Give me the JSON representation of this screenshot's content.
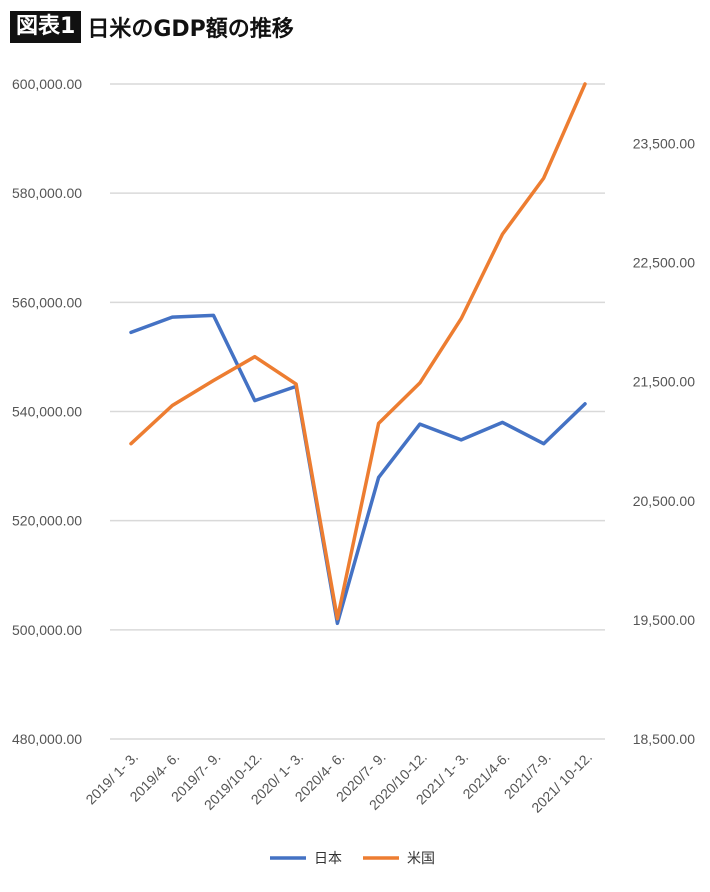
{
  "header": {
    "badge": "図表1",
    "title": "日米のGDP額の推移"
  },
  "chart_data": {
    "type": "line",
    "title": "日米のGDP額の推移",
    "categories": [
      "2019/ 1- 3.",
      "2019/4- 6.",
      "2019/7- 9.",
      "2019/10-12.",
      "2020/ 1- 3.",
      "2020/4- 6.",
      "2020/7- 9.",
      "2020/10-12.",
      "2021/ 1- 3.",
      "2021/4-6.",
      "2021/7-9.",
      "2021/ 10-12."
    ],
    "left_axis": {
      "range": [
        480000,
        600000
      ],
      "ticks": [
        "600,000.00",
        "580,000.00",
        "560,000.00",
        "540,000.00",
        "520,000.00",
        "500,000.00",
        "480,000.00"
      ],
      "tick_values": [
        600000,
        580000,
        560000,
        540000,
        520000,
        500000,
        480000
      ]
    },
    "right_axis": {
      "range": [
        18500,
        24000
      ],
      "ticks": [
        "23,500.00",
        "22,500.00",
        "21,500.00",
        "20,500.00",
        "19,500.00",
        "18,500.00"
      ],
      "tick_values": [
        23500,
        22500,
        21500,
        20500,
        19500,
        18500
      ]
    },
    "series": [
      {
        "name": "日本",
        "axis": "left",
        "color": "#4472C4",
        "values": [
          554500,
          557300,
          557600,
          542000,
          544600,
          501200,
          527900,
          537700,
          534800,
          538000,
          534100,
          541400
        ]
      },
      {
        "name": "米国",
        "axis": "right",
        "color": "#ED7D31",
        "values": [
          20980,
          21300,
          21510,
          21710,
          21480,
          19510,
          21150,
          21490,
          22030,
          22740,
          23210,
          24000
        ]
      }
    ],
    "grid": true,
    "legend_position": "bottom"
  }
}
